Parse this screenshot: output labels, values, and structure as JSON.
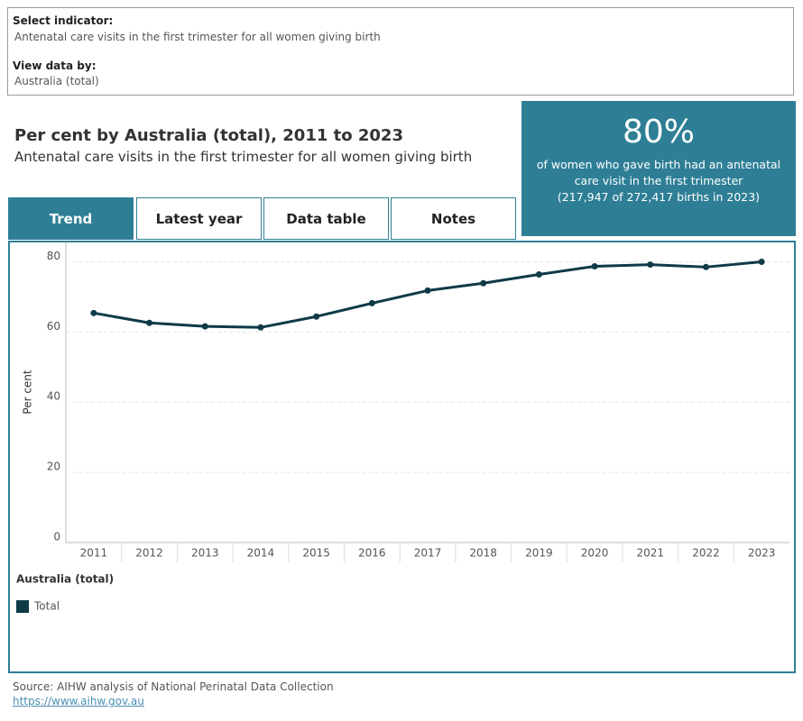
{
  "filters": {
    "indicator_label": "Select indicator:",
    "indicator_value": "Antenatal care visits in the first trimester for all women giving birth",
    "view_label": "View data by:",
    "view_value": "Australia (total)"
  },
  "header": {
    "title": "Per cent by Australia (total), 2011 to 2023",
    "subtitle": "Antenatal care visits in the first trimester for all women giving birth"
  },
  "kpi": {
    "value": "80%",
    "text": "of women who gave birth had an antenatal care visit in the first trimester",
    "detail": "(217,947 of 272,417 births in 2023)"
  },
  "tabs": [
    "Trend",
    "Latest year",
    "Data table",
    "Notes"
  ],
  "chart_data": {
    "type": "line",
    "y_label": "Per cent",
    "categories": [
      "2011",
      "2012",
      "2013",
      "2014",
      "2015",
      "2016",
      "2017",
      "2018",
      "2019",
      "2020",
      "2021",
      "2022",
      "2023"
    ],
    "series": [
      {
        "name": "Total",
        "color": "#0e3b47",
        "values": [
          65.4,
          62.6,
          61.6,
          61.3,
          64.4,
          68.2,
          71.8,
          73.9,
          76.4,
          78.7,
          79.2,
          78.5,
          80.0
        ]
      }
    ],
    "ylim": [
      0,
      85
    ],
    "yticks": [
      0,
      20,
      40,
      60,
      80
    ],
    "grid": true,
    "legend_title": "Australia (total)"
  },
  "footer": {
    "source": "Source: AIHW analysis of National Perinatal Data Collection",
    "link": "https://www.aihw.gov.au"
  }
}
